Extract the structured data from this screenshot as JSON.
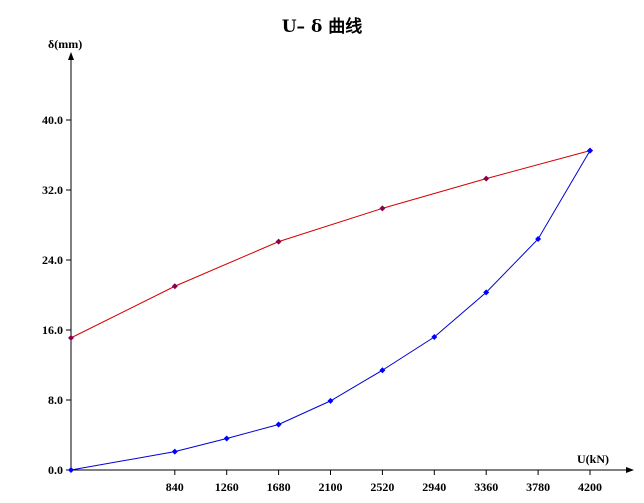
{
  "chart_data": {
    "type": "line",
    "title": "U– δ 曲线",
    "xlabel": "U(kN)",
    "ylabel": "δ(mm)",
    "x_ticks": [
      840,
      1260,
      1680,
      2100,
      2520,
      2940,
      3360,
      3780,
      4200
    ],
    "y_ticks": [
      "0.0",
      "8.0",
      "16.0",
      "24.0",
      "32.0",
      "40.0"
    ],
    "xlim": [
      0,
      4200
    ],
    "ylim": [
      0,
      40
    ],
    "grid": false,
    "series": [
      {
        "color": "#d40000",
        "marker_color": "#8b004b",
        "points": [
          [
            0,
            15.1
          ],
          [
            840,
            21.0
          ],
          [
            1680,
            26.1
          ],
          [
            2520,
            29.9
          ],
          [
            3360,
            33.3
          ],
          [
            4200,
            36.5
          ]
        ]
      },
      {
        "color": "#0000d4",
        "marker_color": "#0000ff",
        "points": [
          [
            0,
            0.0
          ],
          [
            840,
            2.1
          ],
          [
            1260,
            3.6
          ],
          [
            1680,
            5.2
          ],
          [
            2100,
            7.9
          ],
          [
            2520,
            11.4
          ],
          [
            2940,
            15.2
          ],
          [
            3360,
            20.3
          ],
          [
            3780,
            26.4
          ],
          [
            4200,
            36.5
          ]
        ]
      }
    ]
  }
}
